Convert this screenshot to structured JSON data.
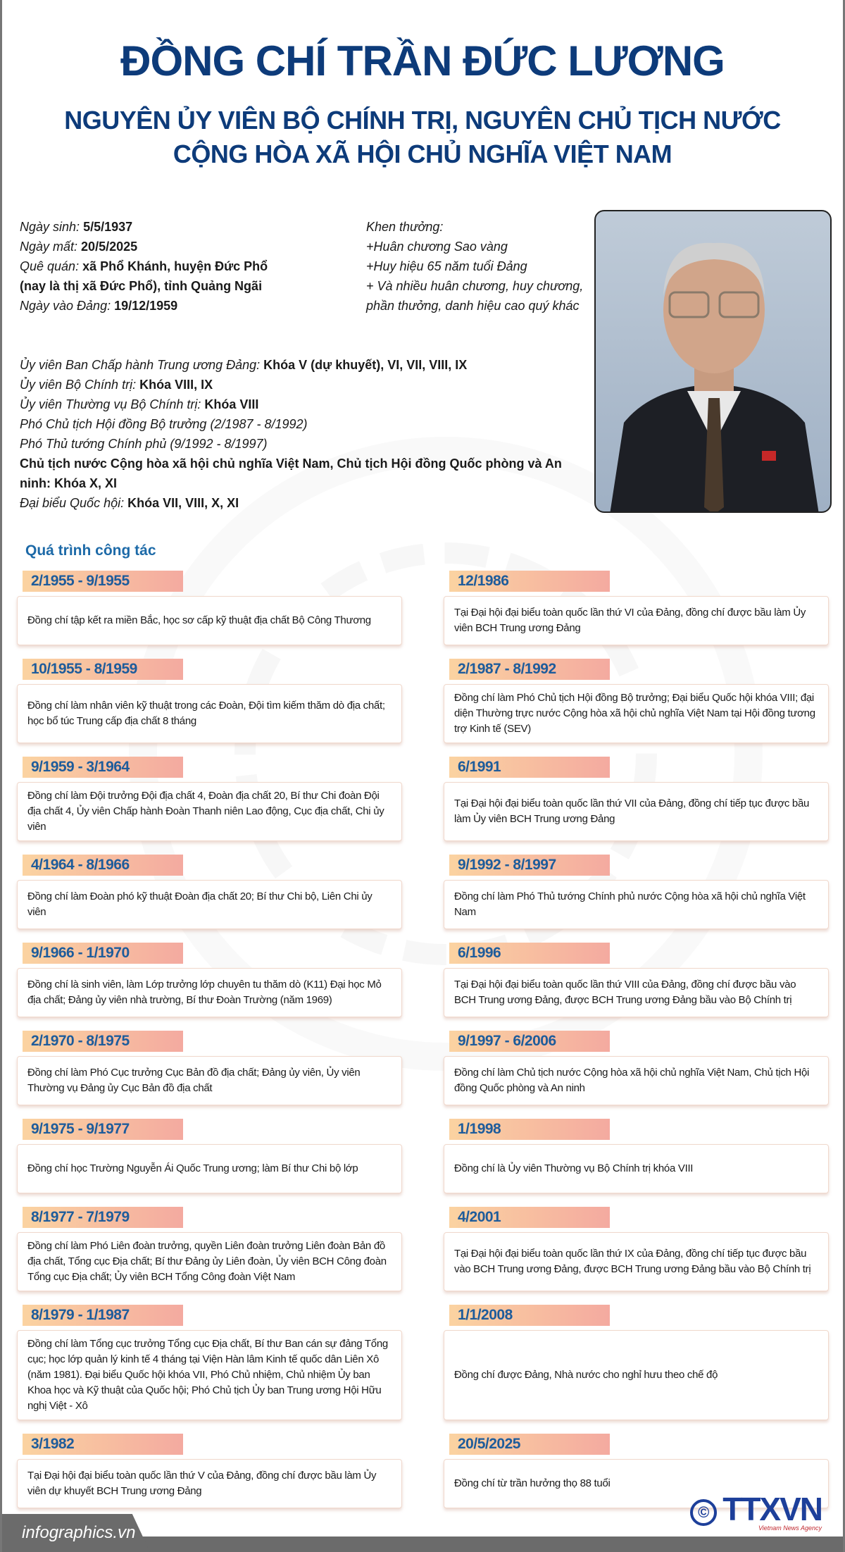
{
  "header": {
    "title": "ĐỒNG CHÍ TRẦN ĐỨC LƯƠNG",
    "subtitle_line1": "NGUYÊN ỦY VIÊN BỘ CHÍNH TRỊ, NGUYÊN CHỦ TỊCH NƯỚC",
    "subtitle_line2": "CỘNG HÒA XÃ HỘI CHỦ NGHĨA VIỆT NAM"
  },
  "bio": [
    {
      "label": "Ngày sinh:",
      "value": "5/5/1937"
    },
    {
      "label": "Ngày mất:",
      "value": "20/5/2025"
    },
    {
      "label": "Quê quán:",
      "value": "xã Phổ Khánh, huyện Đức Phổ"
    },
    {
      "label": "",
      "value": "(nay là thị xã Đức Phổ), tỉnh Quảng Ngãi"
    },
    {
      "label": "Ngày vào Đảng:",
      "value": "19/12/1959"
    }
  ],
  "awards": {
    "title": "Khen thưởng:",
    "items": [
      "+Huân chương Sao vàng",
      "+Huy hiệu 65 năm tuổi Đảng",
      "+ Và nhiều huân chương, huy chương,",
      "phần thưởng, danh hiệu cao quý khác"
    ]
  },
  "positions": [
    {
      "label": "Ủy viên Ban Chấp hành Trung ương Đảng:",
      "value": "Khóa V (dự  khuyết), VI, VII, VIII, IX"
    },
    {
      "label": "Ủy viên Bộ Chính trị:",
      "value": "Khóa VIII, IX"
    },
    {
      "label": "Ủy viên Thường vụ Bộ Chính trị:",
      "value": "Khóa VIII"
    },
    {
      "label": "Phó Chủ tịch Hội đồng Bộ trưởng (2/1987 - 8/1992)",
      "value": ""
    },
    {
      "label": "Phó Thủ tướng Chính phủ (9/1992 - 8/1997)",
      "value": ""
    },
    {
      "label": "",
      "value": "Chủ tịch nước Cộng hòa xã hội chủ nghĩa Việt Nam, Chủ tịch Hội đồng Quốc phòng và An ninh: Khóa X, XI"
    },
    {
      "label": "Đại biểu Quốc hội:",
      "value": "Khóa VII, VIII, X, XI"
    }
  ],
  "section_title": "Quá trình công tác",
  "timeline": [
    {
      "date": "2/1955 - 9/1955",
      "text": "Đồng chí tập kết ra miền Bắc, học sơ cấp kỹ thuật địa chất Bộ Công Thương"
    },
    {
      "date": "12/1986",
      "text": "Tại Đại hội đại biểu toàn quốc lần thứ VI của Đảng,  đồng chí được bầu làm Ủy viên BCH Trung ương Đảng"
    },
    {
      "date": "10/1955 - 8/1959",
      "text": "Đồng chí làm nhân viên kỹ thuật trong các Đoàn, Đội tìm kiếm thăm dò địa chất; học bổ túc Trung cấp địa chất 8 tháng"
    },
    {
      "date": "2/1987 - 8/1992",
      "text": "Đồng chí làm Phó Chủ tịch Hội đồng Bộ trưởng; Đại biểu Quốc hội khóa VIII; đại diện Thường trực nước Cộng hòa xã hội chủ nghĩa Việt Nam tại Hội đồng tương trợ Kinh tế (SEV)"
    },
    {
      "date": "9/1959 - 3/1964",
      "text": "Đồng chí làm Đội trưởng Đội địa chất 4, Đoàn địa chất 20, Bí thư Chi đoàn Đội địa chất 4, Ủy viên Chấp hành Đoàn Thanh niên Lao động, Cục địa chất, Chi ủy viên"
    },
    {
      "date": "6/1991",
      "text": "Tại Đại hội đại biểu toàn quốc lần thứ VII của Đảng, đồng chí tiếp tục được bầu làm Ủy viên BCH Trung ương Đảng"
    },
    {
      "date": "4/1964 - 8/1966",
      "text": "Đồng chí làm Đoàn phó kỹ thuật Đoàn địa chất 20; Bí thư Chi bộ, Liên Chi ủy viên"
    },
    {
      "date": "9/1992 - 8/1997",
      "text": "Đồng chí làm Phó Thủ tướng Chính phủ nước Cộng hòa xã hội chủ nghĩa Việt Nam"
    },
    {
      "date": "9/1966 - 1/1970",
      "text": "Đồng chí là sinh viên, làm Lớp trưởng lớp chuyên tu thăm dò (K11) Đại học Mỏ địa chất; Đảng ủy viên nhà trường, Bí thư Đoàn Trường (năm 1969)"
    },
    {
      "date": "6/1996",
      "text": "Tại Đại hội đại biểu toàn quốc lần thứ VIII của Đảng, đồng chí được bầu vào BCH Trung ương Đảng, được BCH Trung ương Đảng bầu vào Bộ Chính trị"
    },
    {
      "date": "2/1970 - 8/1975",
      "text": "Đồng chí làm Phó Cục trưởng Cục Bản đồ địa chất; Đảng ủy viên, Ủy  viên Thường vụ Đảng ủy Cục Bản đồ địa chất"
    },
    {
      "date": "9/1997 - 6/2006",
      "text": "Đồng chí làm Chủ tịch nước Cộng hòa xã hội chủ nghĩa Việt Nam, Chủ tịch Hội đồng Quốc phòng và An ninh"
    },
    {
      "date": "9/1975 - 9/1977",
      "text": "Đồng chí học Trường Nguyễn Ái Quốc Trung ương; làm Bí thư Chi bộ lớp"
    },
    {
      "date": "1/1998",
      "text": "Đồng chí là Ủy viên Thường vụ Bộ Chính trị khóa VIII"
    },
    {
      "date": "8/1977 - 7/1979",
      "text": "Đồng chí làm Phó Liên đoàn trưởng, quyền Liên đoàn trưởng Liên đoàn Bản đồ địa chất, Tổng cục Địa chất; Bí thư Đảng ủy Liên đoàn, Ủy viên BCH Công đoàn Tổng cục Địa chất; Ủy viên BCH Tổng Công đoàn Việt Nam"
    },
    {
      "date": "4/2001",
      "text": "Tại Đại hội đại biểu toàn quốc lần thứ IX của Đảng, đồng chí tiếp tục được bầu vào BCH Trung ương Đảng, được BCH Trung ương Đảng bầu vào Bộ Chính trị"
    },
    {
      "date": "8/1979 - 1/1987",
      "text": "Đồng chí làm Tổng cục trưởng Tổng cục Địa chất, Bí thư Ban cán sự đảng Tổng cục; học lớp quản lý kinh tế 4 tháng tại Viện Hàn lâm Kinh tế quốc dân Liên Xô (năm 1981). Đại biểu Quốc hội khóa VII, Phó Chủ nhiệm, Chủ nhiệm Ủy ban Khoa học và Kỹ thuật của Quốc hội; Phó Chủ tịch Ủy ban Trung ương Hội Hữu nghị Việt - Xô"
    },
    {
      "date": "1/1/2008",
      "text": "Đồng chí được Đảng, Nhà nước cho nghỉ hưu theo chế độ"
    },
    {
      "date": "3/1982",
      "text": "Tại Đại hội đại biểu toàn quốc lần thứ V của Đảng, đồng chí được bầu làm Ủy viên dự khuyết BCH Trung ương Đảng"
    },
    {
      "date": "20/5/2025",
      "text": "Đồng chí từ trần hưởng thọ 88 tuổi"
    }
  ],
  "footer": {
    "site": "infographics.vn",
    "logo_text": "TTXVN",
    "logo_sub": "Vietnam News Agency",
    "copyright": "©"
  },
  "colors": {
    "title": "#0d3b7a",
    "date_label": "#1e5c9b",
    "label_gradient_start": "#fbd3a1",
    "label_gradient_end": "#f4aaa0"
  }
}
